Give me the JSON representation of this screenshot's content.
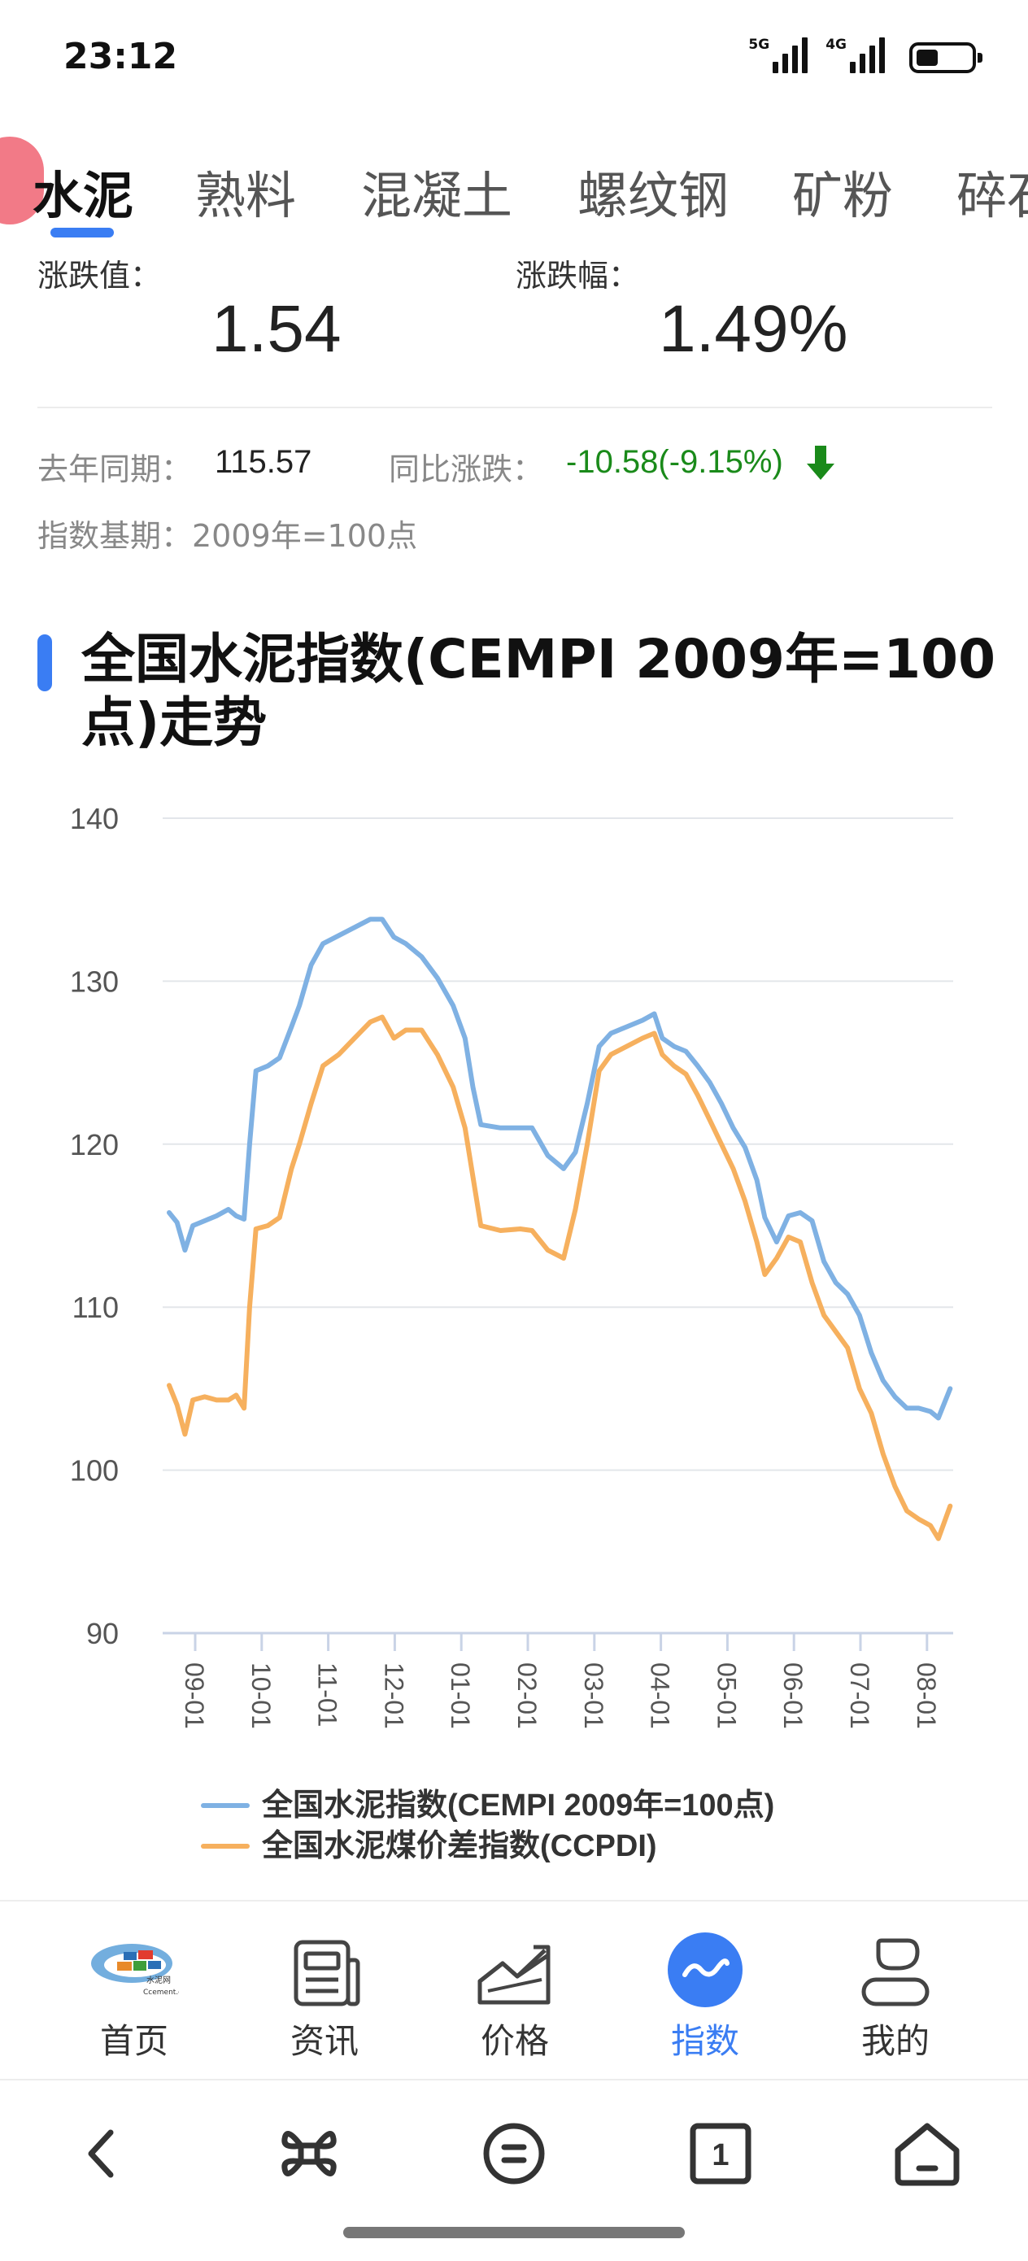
{
  "status_bar": {
    "time": "23:12",
    "net1_label": "5G",
    "net2_label": "4G",
    "battery_level": 0.4
  },
  "tabs": [
    {
      "label": "水泥",
      "active": true
    },
    {
      "label": "熟料",
      "active": false
    },
    {
      "label": "混凝土",
      "active": false
    },
    {
      "label": "螺纹钢",
      "active": false
    },
    {
      "label": "矿粉",
      "active": false
    },
    {
      "label": "碎石",
      "active": false
    }
  ],
  "stats": {
    "change_value_label": "涨跌值：",
    "change_value": "1.54",
    "change_pct_label": "涨跌幅：",
    "change_pct": "1.49%",
    "last_year_label": "去年同期：",
    "last_year_value": "115.57",
    "yoy_label": "同比涨跌：",
    "yoy_value": "-10.58(-9.15%)",
    "base_label": "指数基期：2009年=100点"
  },
  "colors": {
    "accent": "#3a7df3",
    "series1": "#7fb1e3",
    "series2": "#f6b05e",
    "down": "#1a8a1a"
  },
  "chart": {
    "title": "全国水泥指数(CEMPI 2009年=100点)走势"
  },
  "chart_data": {
    "type": "line",
    "title": "全国水泥指数(CEMPI 2009年=100点)走势",
    "x_ticks": [
      "09-01",
      "10-01",
      "11-01",
      "12-01",
      "01-01",
      "02-01",
      "03-01",
      "04-01",
      "05-01",
      "06-01",
      "07-01",
      "08-01"
    ],
    "x_range": [
      0,
      1
    ],
    "ylim": [
      90,
      140
    ],
    "y_ticks": [
      90,
      100,
      110,
      120,
      130,
      140
    ],
    "grid": true,
    "legend_position": "bottom",
    "series": [
      {
        "name": "全国水泥指数(CEMPI 2009年=100点)",
        "color": "#7fb1e3",
        "points": [
          [
            0.0,
            115.8
          ],
          [
            0.01,
            115.2
          ],
          [
            0.02,
            113.5
          ],
          [
            0.03,
            115.0
          ],
          [
            0.045,
            115.3
          ],
          [
            0.06,
            115.6
          ],
          [
            0.075,
            116.0
          ],
          [
            0.085,
            115.6
          ],
          [
            0.095,
            115.4
          ],
          [
            0.102,
            120.0
          ],
          [
            0.11,
            124.5
          ],
          [
            0.125,
            124.8
          ],
          [
            0.14,
            125.3
          ],
          [
            0.155,
            127.2
          ],
          [
            0.165,
            128.5
          ],
          [
            0.18,
            131.0
          ],
          [
            0.195,
            132.3
          ],
          [
            0.215,
            132.8
          ],
          [
            0.235,
            133.3
          ],
          [
            0.255,
            133.8
          ],
          [
            0.27,
            133.8
          ],
          [
            0.285,
            132.7
          ],
          [
            0.3,
            132.3
          ],
          [
            0.32,
            131.5
          ],
          [
            0.34,
            130.2
          ],
          [
            0.36,
            128.5
          ],
          [
            0.375,
            126.5
          ],
          [
            0.385,
            123.5
          ],
          [
            0.395,
            121.2
          ],
          [
            0.42,
            121.0
          ],
          [
            0.445,
            121.0
          ],
          [
            0.46,
            121.0
          ],
          [
            0.48,
            119.3
          ],
          [
            0.5,
            118.5
          ],
          [
            0.515,
            119.5
          ],
          [
            0.53,
            122.5
          ],
          [
            0.545,
            126.0
          ],
          [
            0.56,
            126.8
          ],
          [
            0.58,
            127.2
          ],
          [
            0.6,
            127.6
          ],
          [
            0.615,
            128.0
          ],
          [
            0.625,
            126.5
          ],
          [
            0.64,
            126.0
          ],
          [
            0.655,
            125.7
          ],
          [
            0.67,
            124.8
          ],
          [
            0.685,
            123.8
          ],
          [
            0.7,
            122.5
          ],
          [
            0.715,
            121.0
          ],
          [
            0.73,
            119.8
          ],
          [
            0.745,
            117.8
          ],
          [
            0.755,
            115.5
          ],
          [
            0.77,
            114.0
          ],
          [
            0.785,
            115.6
          ],
          [
            0.8,
            115.8
          ],
          [
            0.815,
            115.3
          ],
          [
            0.83,
            112.8
          ],
          [
            0.845,
            111.5
          ],
          [
            0.86,
            110.8
          ],
          [
            0.875,
            109.5
          ],
          [
            0.89,
            107.2
          ],
          [
            0.905,
            105.5
          ],
          [
            0.92,
            104.5
          ],
          [
            0.935,
            103.8
          ],
          [
            0.95,
            103.8
          ],
          [
            0.965,
            103.6
          ],
          [
            0.975,
            103.2
          ],
          [
            0.99,
            105.0
          ]
        ]
      },
      {
        "name": "全国水泥煤价差指数(CCPDI)",
        "color": "#f6b05e",
        "points": [
          [
            0.0,
            105.2
          ],
          [
            0.01,
            104.0
          ],
          [
            0.02,
            102.2
          ],
          [
            0.03,
            104.3
          ],
          [
            0.045,
            104.5
          ],
          [
            0.06,
            104.3
          ],
          [
            0.075,
            104.3
          ],
          [
            0.085,
            104.6
          ],
          [
            0.095,
            103.8
          ],
          [
            0.102,
            110.0
          ],
          [
            0.11,
            114.8
          ],
          [
            0.125,
            115.0
          ],
          [
            0.14,
            115.5
          ],
          [
            0.155,
            118.5
          ],
          [
            0.165,
            120.0
          ],
          [
            0.18,
            122.5
          ],
          [
            0.195,
            124.8
          ],
          [
            0.215,
            125.5
          ],
          [
            0.235,
            126.5
          ],
          [
            0.255,
            127.5
          ],
          [
            0.27,
            127.8
          ],
          [
            0.285,
            126.5
          ],
          [
            0.3,
            127.0
          ],
          [
            0.32,
            127.0
          ],
          [
            0.34,
            125.5
          ],
          [
            0.36,
            123.5
          ],
          [
            0.375,
            121.0
          ],
          [
            0.385,
            118.0
          ],
          [
            0.395,
            115.0
          ],
          [
            0.42,
            114.7
          ],
          [
            0.445,
            114.8
          ],
          [
            0.46,
            114.7
          ],
          [
            0.48,
            113.5
          ],
          [
            0.5,
            113.0
          ],
          [
            0.515,
            116.0
          ],
          [
            0.53,
            120.0
          ],
          [
            0.545,
            124.5
          ],
          [
            0.56,
            125.5
          ],
          [
            0.58,
            126.0
          ],
          [
            0.6,
            126.5
          ],
          [
            0.615,
            126.8
          ],
          [
            0.625,
            125.5
          ],
          [
            0.64,
            124.8
          ],
          [
            0.655,
            124.3
          ],
          [
            0.67,
            123.0
          ],
          [
            0.685,
            121.5
          ],
          [
            0.7,
            120.0
          ],
          [
            0.715,
            118.5
          ],
          [
            0.73,
            116.5
          ],
          [
            0.745,
            114.0
          ],
          [
            0.755,
            112.0
          ],
          [
            0.77,
            113.0
          ],
          [
            0.785,
            114.3
          ],
          [
            0.8,
            114.0
          ],
          [
            0.815,
            111.5
          ],
          [
            0.83,
            109.5
          ],
          [
            0.845,
            108.5
          ],
          [
            0.86,
            107.5
          ],
          [
            0.875,
            105.0
          ],
          [
            0.89,
            103.5
          ],
          [
            0.905,
            101.0
          ],
          [
            0.92,
            99.0
          ],
          [
            0.935,
            97.5
          ],
          [
            0.95,
            97.0
          ],
          [
            0.965,
            96.6
          ],
          [
            0.975,
            95.8
          ],
          [
            0.99,
            97.8
          ]
        ]
      }
    ]
  },
  "bottom_nav": [
    {
      "label": "首页",
      "icon": "ccement-logo-icon",
      "active": false
    },
    {
      "label": "资讯",
      "icon": "news-icon",
      "active": false
    },
    {
      "label": "价格",
      "icon": "price-chart-icon",
      "active": false
    },
    {
      "label": "指数",
      "icon": "index-wave-icon",
      "active": true
    },
    {
      "label": "我的",
      "icon": "profile-icon",
      "active": false
    }
  ],
  "logo": {
    "text_top": "水泥网",
    "text_bottom": "Ccement.com"
  },
  "system_nav": [
    "back-icon",
    "shortcut-icon",
    "menu-icon",
    "tabs-icon",
    "home-icon"
  ],
  "system_nav_tab_count": "1"
}
